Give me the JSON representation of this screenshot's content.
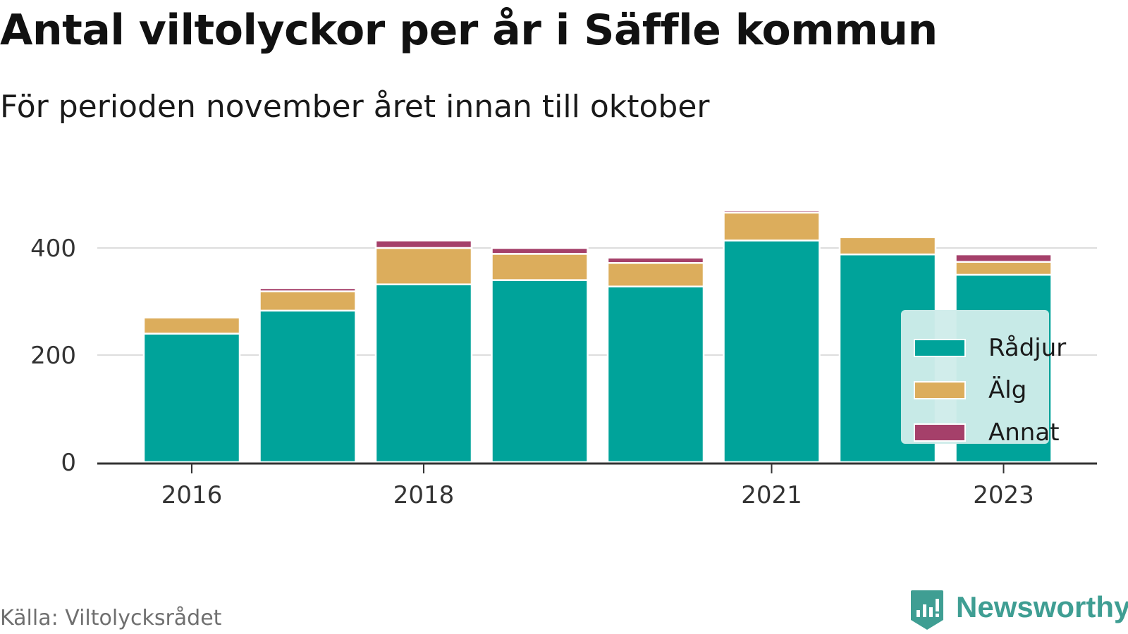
{
  "header": {
    "title": "Antal viltolyckor per år i Säffle kommun",
    "subtitle": "För perioden november året innan till oktober"
  },
  "footer": {
    "source": "Källa: Viltolycksrådet",
    "brand": "Newsworthy",
    "brand_icon": "newsworthy-logo-icon",
    "brand_color": "#3f9e93"
  },
  "chart_data": {
    "type": "bar",
    "stacked": true,
    "categories": [
      "2016",
      "2017",
      "2018",
      "2019",
      "2020",
      "2021",
      "2022",
      "2023"
    ],
    "x_tick_labels": [
      "2016",
      "2018",
      "2021",
      "2023"
    ],
    "series": [
      {
        "name": "Rådjur",
        "color": "#00a39a",
        "values": [
          240,
          283,
          332,
          340,
          328,
          414,
          388,
          350
        ]
      },
      {
        "name": "Älg",
        "color": "#dcad5c",
        "values": [
          30,
          36,
          68,
          49,
          44,
          52,
          32,
          24
        ]
      },
      {
        "name": "Annat",
        "color": "#a5406a",
        "values": [
          3,
          6,
          14,
          11,
          10,
          4,
          0,
          14
        ]
      }
    ],
    "y_ticks": [
      0,
      200,
      400
    ],
    "ylim": [
      0,
      500
    ],
    "grid": true,
    "legend_position": "bottom-right"
  }
}
